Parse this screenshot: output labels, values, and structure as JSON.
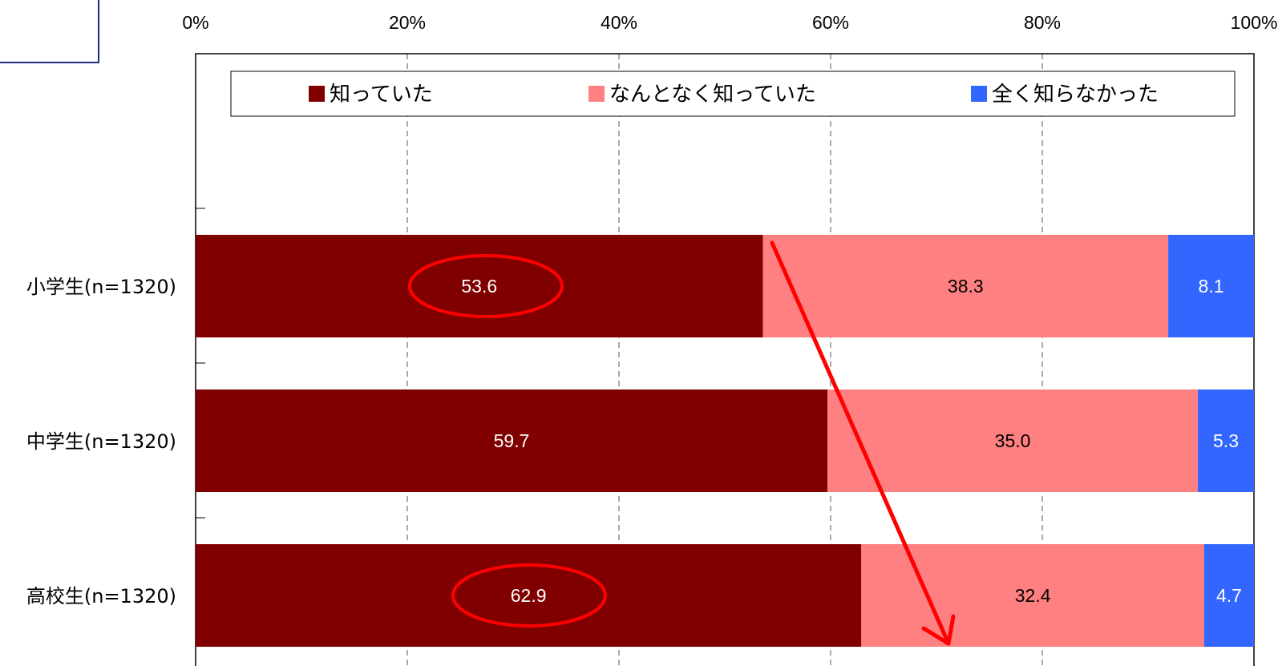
{
  "chart_data": {
    "type": "bar",
    "orientation": "horizontal",
    "stacked": true,
    "percent_stacked": true,
    "categories": [
      "小学生(n=1320)",
      "中学生(n=1320)",
      "高校生(n=1320)"
    ],
    "series": [
      {
        "name": "知っていた",
        "color": "#800000",
        "label_color": "#ffffff",
        "values": [
          53.6,
          59.7,
          62.9
        ]
      },
      {
        "name": "なんとなく知っていた",
        "color": "#ff8080",
        "label_color": "#000000",
        "values": [
          38.3,
          35.0,
          32.4
        ]
      },
      {
        "name": "全く知らなかった",
        "color": "#3366ff",
        "label_color": "#ffffff",
        "values": [
          8.1,
          5.3,
          4.7
        ]
      }
    ],
    "data_labels": [
      [
        "53.6",
        "38.3",
        "8.1"
      ],
      [
        "59.7",
        "35.0",
        "5.3"
      ],
      [
        "62.9",
        "32.4",
        "4.7"
      ]
    ],
    "x_ticks": [
      "0%",
      "20%",
      "40%",
      "60%",
      "80%",
      "100%"
    ],
    "xlim": [
      0,
      100
    ],
    "x_axis_position": "top",
    "grid": "vertical-dashed",
    "legend_position": "top-inside",
    "annotations": {
      "circled_values": [
        "53.6",
        "62.9"
      ],
      "circle_color": "#ff0000",
      "trend_arrow": "down-right",
      "arrow_color": "#ff0000"
    }
  }
}
